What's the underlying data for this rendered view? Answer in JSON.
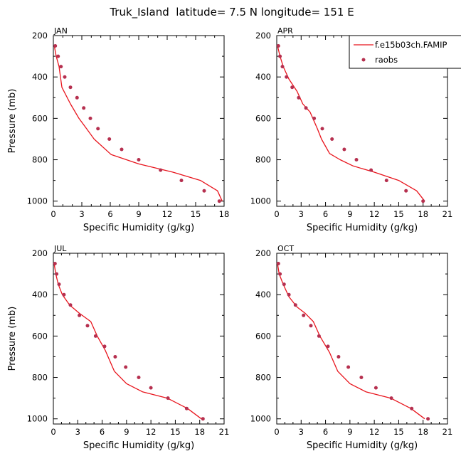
{
  "figure": {
    "title": "Truk_Island  latitude= 7.5 N longitude= 151 E",
    "legend": {
      "model_label": "f.e15b03ch.FAMIP",
      "obs_label": "raobs",
      "model_color": "#e8141c",
      "obs_color": "#b6304f"
    }
  },
  "chart_data": [
    {
      "type": "line",
      "panel_label": "JAN",
      "xlabel": "Specific Humidity (g/kg)",
      "ylabel": "Pressure (mb)",
      "xlim": [
        0,
        18
      ],
      "xticks": [
        0,
        3,
        6,
        9,
        12,
        15,
        18
      ],
      "ylim": [
        200,
        1025
      ],
      "yticks": [
        200,
        400,
        600,
        800,
        1000
      ],
      "y_inverted": true,
      "series": [
        {
          "name": "f.e15b03ch.FAMIP",
          "style": "line",
          "x": [
            0.1,
            0.3,
            0.6,
            0.9,
            1.8,
            2.7,
            3.5,
            4.3,
            6.1,
            9.0,
            12.6,
            15.5,
            17.3,
            17.8
          ],
          "y": [
            250,
            300,
            350,
            450,
            530,
            600,
            650,
            700,
            775,
            820,
            860,
            900,
            950,
            1000
          ]
        },
        {
          "name": "raobs",
          "style": "points",
          "x": [
            0.2,
            0.5,
            0.8,
            1.2,
            1.8,
            2.5,
            3.2,
            3.9,
            4.7,
            5.9,
            7.2,
            9.0,
            11.3,
            13.5,
            15.9,
            17.5
          ],
          "y": [
            250,
            300,
            350,
            400,
            450,
            500,
            550,
            600,
            650,
            700,
            750,
            800,
            850,
            900,
            950,
            1000
          ]
        }
      ]
    },
    {
      "type": "line",
      "panel_label": "APR",
      "xlabel": "Specific Humidity (g/kg)",
      "ylabel": "",
      "xlim": [
        0,
        21
      ],
      "xticks": [
        0,
        3,
        6,
        9,
        12,
        15,
        18,
        21
      ],
      "ylim": [
        200,
        1025
      ],
      "yticks": [
        200,
        400,
        600,
        800,
        1000
      ],
      "y_inverted": true,
      "series": [
        {
          "name": "f.e15b03ch.FAMIP",
          "style": "line",
          "x": [
            0.1,
            0.4,
            0.8,
            1.5,
            2.5,
            3.2,
            4.1,
            5.0,
            5.5,
            6.5,
            7.8,
            9.4,
            12.0,
            15.0,
            17.2,
            18.2
          ],
          "y": [
            250,
            300,
            350,
            410,
            470,
            530,
            570,
            650,
            700,
            770,
            800,
            830,
            860,
            900,
            950,
            1000
          ]
        },
        {
          "name": "raobs",
          "style": "points",
          "x": [
            0.2,
            0.4,
            0.7,
            1.2,
            1.9,
            2.7,
            3.6,
            4.6,
            5.6,
            6.8,
            8.3,
            9.8,
            11.6,
            13.5,
            15.9,
            18.0
          ],
          "y": [
            250,
            300,
            350,
            400,
            450,
            500,
            550,
            600,
            650,
            700,
            750,
            800,
            850,
            900,
            950,
            1000
          ]
        }
      ]
    },
    {
      "type": "line",
      "panel_label": "JUL",
      "xlabel": "Specific Humidity (g/kg)",
      "ylabel": "Pressure (mb)",
      "xlim": [
        0,
        21
      ],
      "xticks": [
        0,
        3,
        6,
        9,
        12,
        15,
        18,
        21
      ],
      "ylim": [
        200,
        1025
      ],
      "yticks": [
        200,
        400,
        600,
        800,
        1000
      ],
      "y_inverted": true,
      "series": [
        {
          "name": "f.e15b03ch.FAMIP",
          "style": "line",
          "x": [
            0.1,
            0.3,
            0.6,
            1.1,
            2.0,
            3.2,
            4.6,
            5.4,
            6.4,
            7.5,
            9.0,
            11.0,
            14.0,
            16.5,
            18.2
          ],
          "y": [
            250,
            300,
            350,
            400,
            450,
            490,
            530,
            600,
            670,
            770,
            830,
            870,
            900,
            950,
            1000
          ]
        },
        {
          "name": "raobs",
          "style": "points",
          "x": [
            0.2,
            0.4,
            0.7,
            1.3,
            2.1,
            3.2,
            4.2,
            5.2,
            6.3,
            7.6,
            8.9,
            10.5,
            12.0,
            14.1,
            16.4,
            18.4
          ],
          "y": [
            250,
            300,
            350,
            400,
            450,
            500,
            550,
            600,
            650,
            700,
            750,
            800,
            850,
            900,
            950,
            1000
          ]
        }
      ]
    },
    {
      "type": "line",
      "panel_label": "OCT",
      "xlabel": "Specific Humidity (g/kg)",
      "ylabel": "",
      "xlim": [
        0,
        21
      ],
      "xticks": [
        0,
        3,
        6,
        9,
        12,
        15,
        18,
        21
      ],
      "ylim": [
        200,
        1025
      ],
      "yticks": [
        200,
        400,
        600,
        800,
        1000
      ],
      "y_inverted": true,
      "series": [
        {
          "name": "f.e15b03ch.FAMIP",
          "style": "line",
          "x": [
            0.1,
            0.3,
            0.8,
            1.5,
            2.5,
            3.5,
            4.5,
            5.3,
            6.5,
            7.5,
            9.0,
            11.0,
            14.0,
            16.5,
            18.2
          ],
          "y": [
            250,
            300,
            350,
            410,
            460,
            490,
            530,
            600,
            680,
            770,
            830,
            870,
            900,
            950,
            1000
          ]
        },
        {
          "name": "raobs",
          "style": "points",
          "x": [
            0.2,
            0.4,
            0.9,
            1.5,
            2.3,
            3.3,
            4.2,
            5.2,
            6.3,
            7.6,
            8.8,
            10.4,
            12.2,
            14.1,
            16.6,
            18.6
          ],
          "y": [
            250,
            300,
            350,
            400,
            450,
            500,
            550,
            600,
            650,
            700,
            750,
            800,
            850,
            900,
            950,
            1000
          ]
        }
      ]
    }
  ]
}
